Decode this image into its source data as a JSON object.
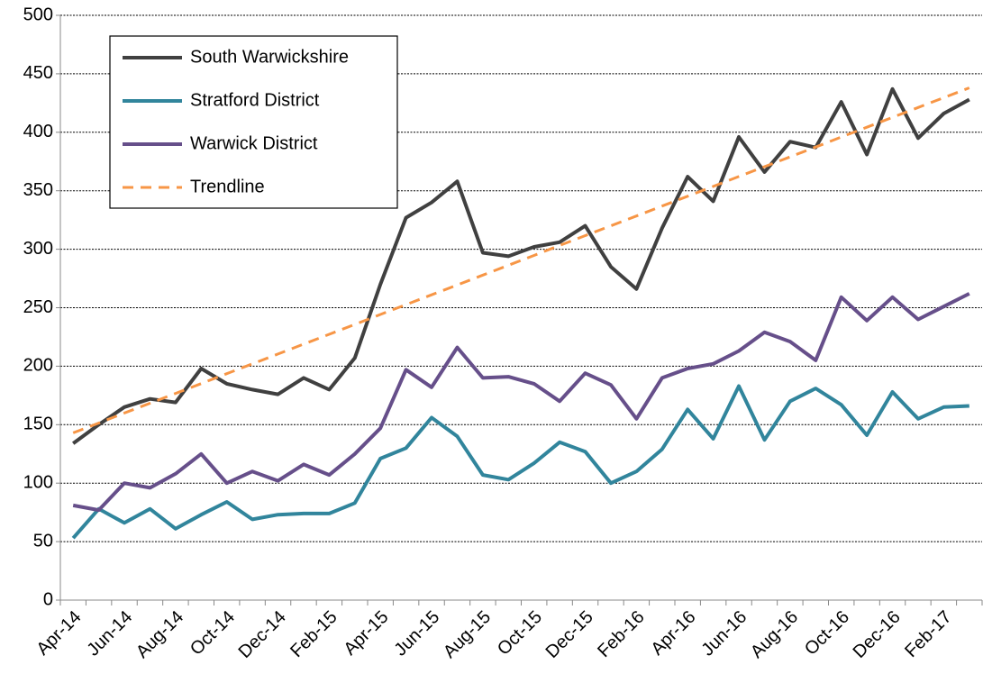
{
  "chart_data": {
    "type": "line",
    "categories": [
      "Apr-14",
      null,
      "Jun-14",
      null,
      "Aug-14",
      null,
      "Oct-14",
      null,
      "Dec-14",
      null,
      "Feb-15",
      null,
      "Apr-15",
      null,
      "Jun-15",
      null,
      "Aug-15",
      null,
      "Oct-15",
      null,
      "Dec-15",
      null,
      "Feb-16",
      null,
      "Apr-16",
      null,
      "Jun-16",
      null,
      "Aug-16",
      null,
      "Oct-16",
      null,
      "Dec-16",
      null,
      "Feb-17",
      null
    ],
    "series": [
      {
        "name": "South Warwickshire",
        "color": "#404040",
        "linestyle": "solid",
        "values": [
          134,
          150,
          165,
          172,
          169,
          198,
          185,
          180,
          176,
          190,
          180,
          207,
          270,
          327,
          340,
          358,
          297,
          294,
          302,
          306,
          320,
          285,
          266,
          318,
          362,
          341,
          396,
          366,
          392,
          387,
          426,
          381,
          437,
          395,
          416,
          428
        ]
      },
      {
        "name": "Stratford District",
        "color": "#31859c",
        "linestyle": "solid",
        "values": [
          53,
          78,
          66,
          78,
          61,
          73,
          84,
          69,
          73,
          74,
          74,
          83,
          121,
          130,
          156,
          140,
          107,
          103,
          117,
          135,
          127,
          100,
          110,
          129,
          163,
          138,
          183,
          137,
          170,
          181,
          167,
          141,
          178,
          155,
          165,
          166
        ]
      },
      {
        "name": "Warwick District",
        "color": "#664f8a",
        "linestyle": "solid",
        "values": [
          81,
          77,
          100,
          96,
          108,
          125,
          100,
          110,
          102,
          116,
          107,
          125,
          147,
          197,
          182,
          216,
          190,
          191,
          185,
          170,
          194,
          184,
          155,
          190,
          198,
          202,
          213,
          229,
          221,
          205,
          259,
          239,
          259,
          240,
          251,
          262
        ]
      },
      {
        "name": "Trendline",
        "color": "#f79646",
        "linestyle": "dashed",
        "values": [
          143,
          151.4,
          159.9,
          168.3,
          176.7,
          185.1,
          193.6,
          202,
          210.4,
          218.9,
          227.3,
          235.7,
          244.2,
          252.6,
          261,
          269.4,
          277.9,
          286.3,
          294.7,
          303.2,
          311.6,
          320,
          328.4,
          336.9,
          345.3,
          353.7,
          362.2,
          370.6,
          379,
          387.4,
          395.9,
          404.3,
          412.7,
          421.2,
          429.6,
          438
        ]
      }
    ],
    "ylim": [
      0,
      500
    ],
    "yticks": [
      0,
      50,
      100,
      150,
      200,
      250,
      300,
      350,
      400,
      450,
      500
    ],
    "grid": true,
    "legend": "top-left"
  }
}
